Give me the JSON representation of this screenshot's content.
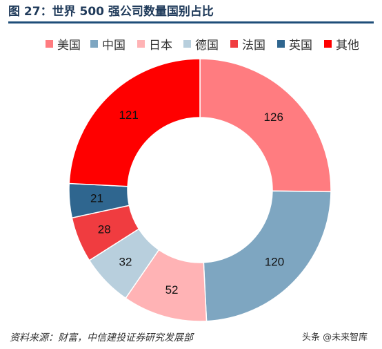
{
  "title": "图 27：世界 500 强公司数量国别占比",
  "source": "资料来源：财富，中信建投证券研究发展部",
  "watermark": "头条 @未来智库",
  "chart_data": {
    "type": "pie",
    "categories": [
      "美国",
      "中国",
      "日本",
      "德国",
      "法国",
      "英国",
      "其他"
    ],
    "values": [
      126,
      120,
      52,
      32,
      28,
      21,
      121
    ],
    "colors": [
      "#ff7c80",
      "#7ea6c1",
      "#ffb3b5",
      "#b8cfdd",
      "#f03c40",
      "#2f668f",
      "#ff0000"
    ],
    "legend_position": "top"
  }
}
